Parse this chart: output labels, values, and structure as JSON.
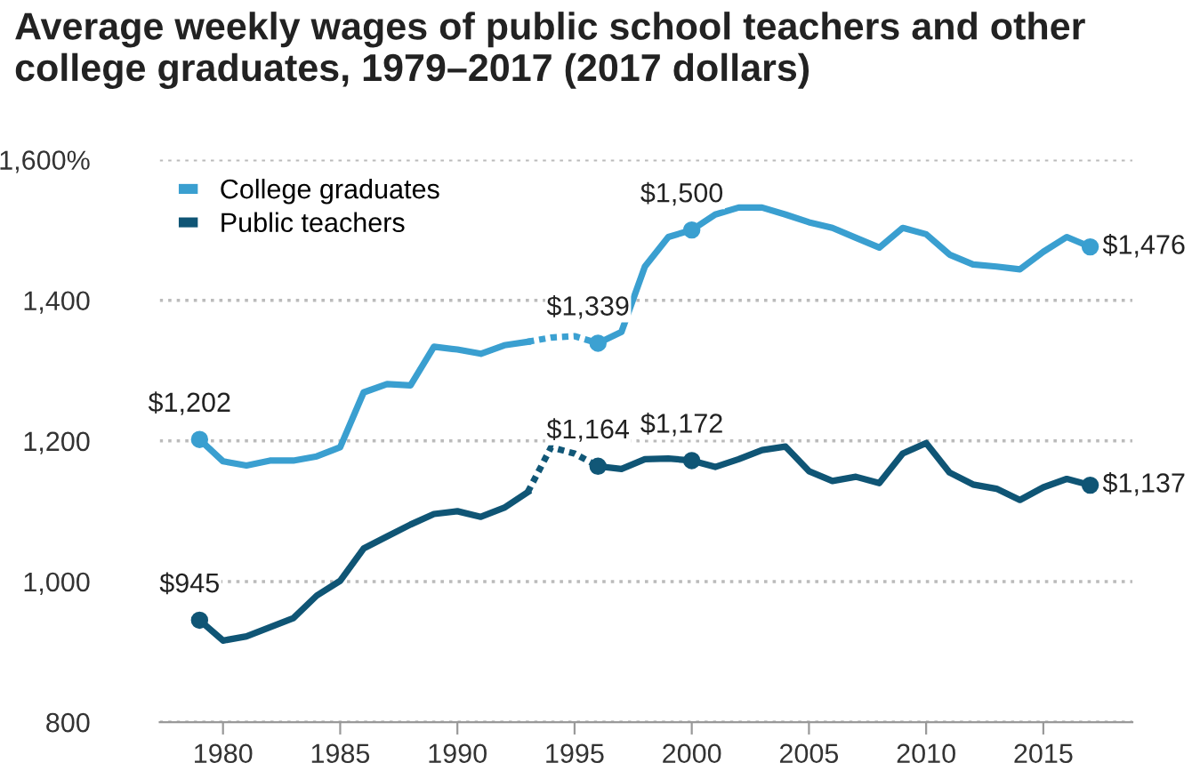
{
  "chart_data": {
    "type": "line",
    "title": "Average weekly wages of public school teachers and other college graduates, 1979–2017 (2017 dollars)",
    "x": [
      1979,
      1980,
      1981,
      1982,
      1983,
      1984,
      1985,
      1986,
      1987,
      1988,
      1989,
      1990,
      1991,
      1992,
      1993,
      1994,
      1995,
      1996,
      1997,
      1998,
      1999,
      2000,
      2001,
      2002,
      2003,
      2004,
      2005,
      2006,
      2007,
      2008,
      2009,
      2010,
      2011,
      2012,
      2013,
      2014,
      2015,
      2016,
      2017
    ],
    "series": [
      {
        "name": "College graduates",
        "color": "#3a9fd0",
        "values": [
          1202,
          1171,
          1165,
          1172,
          1172,
          1178,
          1191,
          1269,
          1281,
          1279,
          1334,
          1330,
          1324,
          1336,
          1341,
          null,
          null,
          1339,
          1355,
          1448,
          1490,
          1500,
          1522,
          1532,
          1532,
          1522,
          1511,
          1503,
          1489,
          1475,
          1503,
          1494,
          1465,
          1451,
          1448,
          1444,
          1469,
          1490,
          1476
        ]
      },
      {
        "name": "Public teachers",
        "color": "#0f5575",
        "values": [
          945,
          916,
          922,
          935,
          948,
          980,
          1001,
          1047,
          1064,
          1081,
          1096,
          1100,
          1092,
          1105,
          1127,
          null,
          null,
          1164,
          1160,
          1174,
          1175,
          1172,
          1163,
          1174,
          1187,
          1192,
          1157,
          1143,
          1149,
          1140,
          1182,
          1197,
          1155,
          1138,
          1132,
          1116,
          1134,
          1146,
          1137
        ]
      },
      {
        "color": "#3ca1d2",
        "x": [
          1993,
          1994,
          1995,
          1996
        ],
        "values": [
          1341,
          1347,
          1349,
          1339
        ],
        "line_style": "dotted"
      },
      {
        "color": "#115777",
        "x": [
          1993,
          1994,
          1995,
          1996
        ],
        "values": [
          1127,
          1191,
          1182,
          1164
        ],
        "line_style": "dotted"
      }
    ],
    "annotations": [
      {
        "text": "$1,202",
        "x": 1979,
        "y": 1202
      },
      {
        "text": "$1,339",
        "x": 1996,
        "y": 1339
      },
      {
        "text": "$1,500",
        "x": 2000,
        "y": 1500
      },
      {
        "text": "$1,476",
        "x": 2017,
        "y": 1476
      },
      {
        "text": "$945",
        "x": 1979,
        "y": 945
      },
      {
        "text": "$1,164",
        "x": 1996,
        "y": 1164
      },
      {
        "text": "$1,172",
        "x": 2000,
        "y": 1172
      },
      {
        "text": "$1,137",
        "x": 2017,
        "y": 1137
      }
    ],
    "xlim": [
      1977.3,
      2018.8
    ],
    "xticks": [
      1980,
      1985,
      1990,
      1995,
      2000,
      2005,
      2010,
      2015
    ],
    "ylim": [
      800,
      1600
    ],
    "yticks": [
      {
        "value": 800,
        "label": "800"
      },
      {
        "value": 1000,
        "label": "1,000"
      },
      {
        "value": 1200,
        "label": "1,200"
      },
      {
        "value": 1400,
        "label": "1,400"
      },
      {
        "value": 1600,
        "label": "1,600%"
      }
    ],
    "grid": "y",
    "legend": "top left",
    "line_style": "solid",
    "marker": "none"
  }
}
